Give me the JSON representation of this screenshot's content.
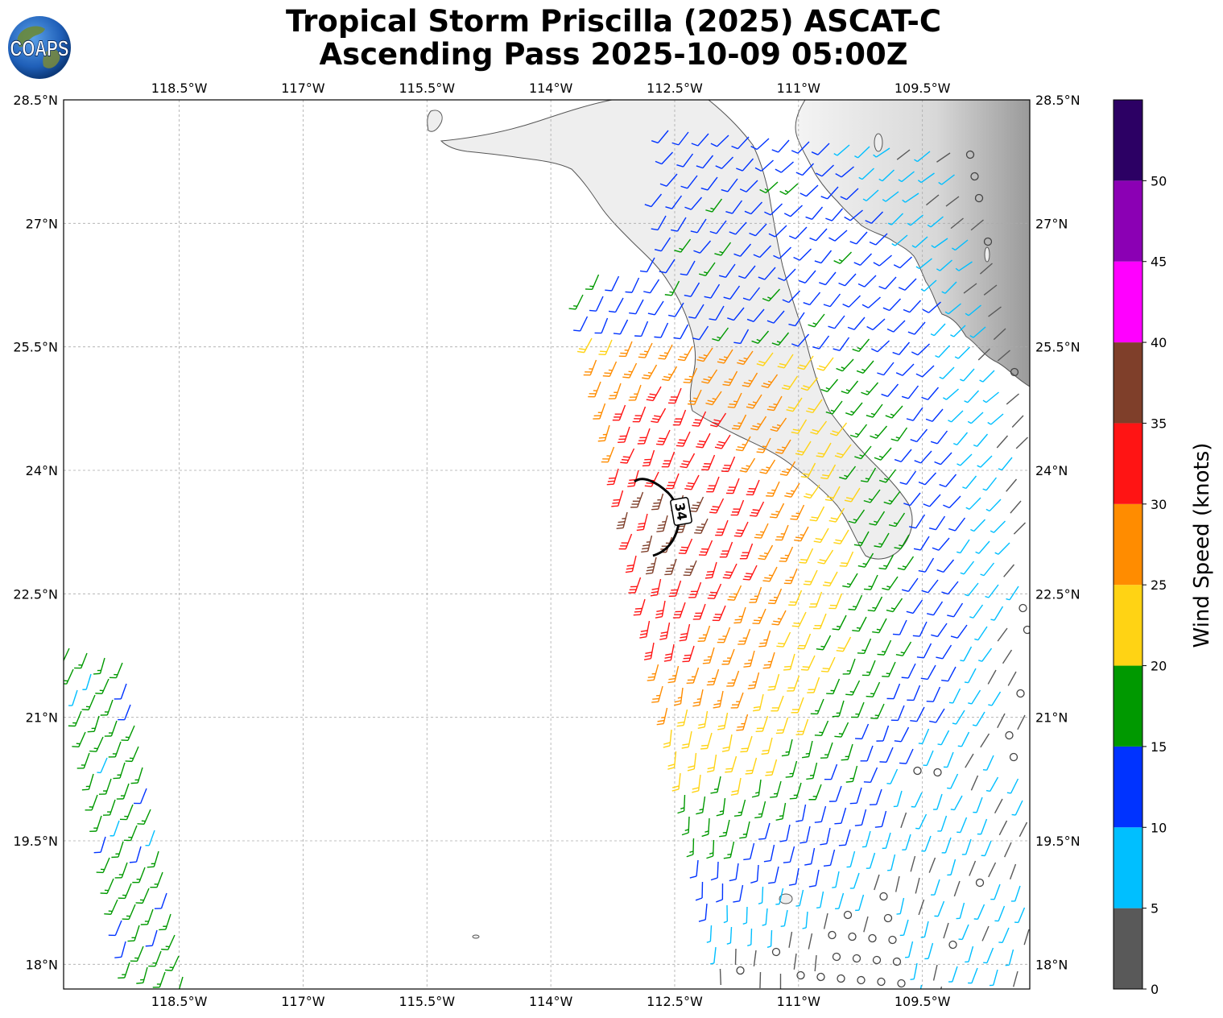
{
  "title": {
    "line1": "Tropical Storm Priscilla (2025) ASCAT-C",
    "line2": "Ascending Pass 2025-10-09 05:00Z"
  },
  "logo": {
    "text": "COAPS",
    "icon": "earth-globe-icon"
  },
  "map": {
    "lon_ticks": [
      "118.5°W",
      "117°W",
      "115.5°W",
      "114°W",
      "112.5°W",
      "111°W",
      "109.5°W"
    ],
    "lon_values": [
      -118.5,
      -117.0,
      -115.5,
      -114.0,
      -112.5,
      -111.0,
      -109.5
    ],
    "lat_ticks": [
      "28.5°N",
      "27°N",
      "25.5°N",
      "24°N",
      "22.5°N",
      "21°N",
      "19.5°N",
      "18°N"
    ],
    "lat_values": [
      28.5,
      27.0,
      25.5,
      24.0,
      22.5,
      21.0,
      19.5,
      18.0
    ],
    "lon_range": [
      -119.9,
      -108.2
    ],
    "lat_range": [
      17.7,
      28.5
    ],
    "grid": true,
    "wind_radius_label": "34",
    "wind_radius_kt": 34
  },
  "colorbar": {
    "label": "Wind Speed (knots)",
    "ticks": [
      "0",
      "5",
      "10",
      "15",
      "20",
      "25",
      "30",
      "35",
      "40",
      "45",
      "50"
    ],
    "bins": [
      {
        "from": 0,
        "to": 5,
        "color": "#595959"
      },
      {
        "from": 5,
        "to": 10,
        "color": "#00bfff"
      },
      {
        "from": 10,
        "to": 15,
        "color": "#0033ff"
      },
      {
        "from": 15,
        "to": 20,
        "color": "#009900"
      },
      {
        "from": 20,
        "to": 25,
        "color": "#ffd314"
      },
      {
        "from": 25,
        "to": 30,
        "color": "#ff8c00"
      },
      {
        "from": 30,
        "to": 35,
        "color": "#ff1414"
      },
      {
        "from": 35,
        "to": 40,
        "color": "#7f3f2a"
      },
      {
        "from": 40,
        "to": 45,
        "color": "#ff00ff"
      },
      {
        "from": 45,
        "to": 50,
        "color": "#8b00b4"
      },
      {
        "from": 50,
        "to": 55,
        "color": "#2c0064"
      }
    ]
  }
}
